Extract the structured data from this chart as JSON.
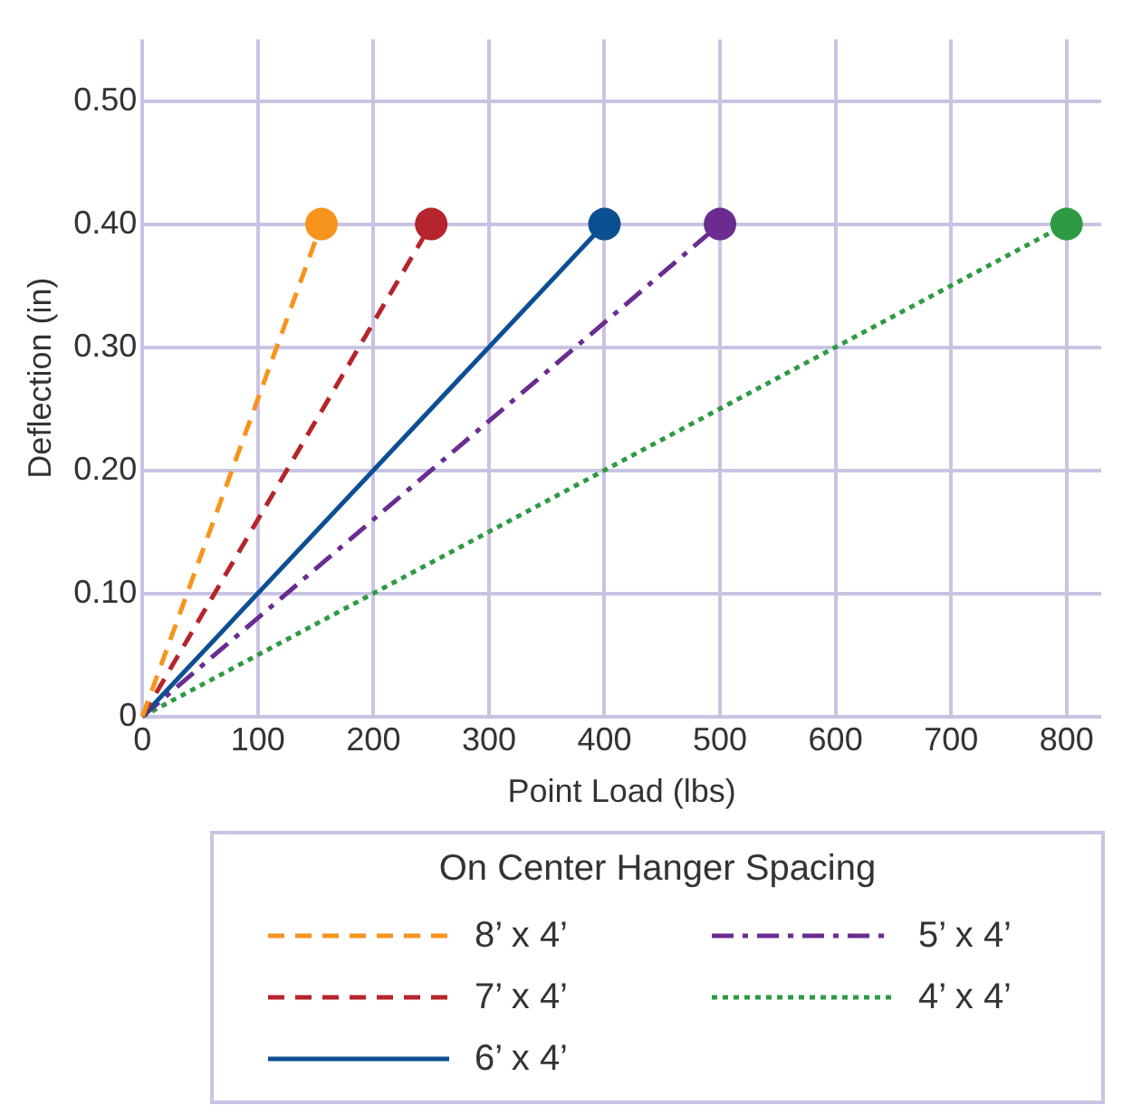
{
  "chart_data": {
    "type": "line",
    "xlabel": "Point Load (lbs)",
    "ylabel": "Deflection (in)",
    "legend_title": "On Center Hanger Spacing",
    "xlim": [
      0,
      830
    ],
    "xticks": [
      0,
      100,
      200,
      300,
      400,
      500,
      600,
      700,
      800
    ],
    "ylim": [
      0,
      0.55
    ],
    "yticks": [
      0,
      {
        "value": 0.1,
        "label": "0.10"
      },
      {
        "value": 0.2,
        "label": "0.20"
      },
      {
        "value": 0.3,
        "label": "0.30"
      },
      {
        "value": 0.4,
        "label": "0.40"
      },
      {
        "value": 0.5,
        "label": "0.50"
      }
    ],
    "grid": true,
    "legend": "bottom",
    "marker": "circle",
    "series": [
      {
        "name": "8’ x 4’",
        "color": "#f7941d",
        "line_style": "dashed",
        "x": [
          0,
          155
        ],
        "values": [
          0,
          0.4
        ]
      },
      {
        "name": "7’ x 4’",
        "color": "#b5252b",
        "line_style": "dashed",
        "x": [
          0,
          250
        ],
        "values": [
          0,
          0.4
        ]
      },
      {
        "name": "6’ x 4’",
        "color": "#0d4f93",
        "line_style": "solid",
        "x": [
          0,
          400
        ],
        "values": [
          0,
          0.4
        ]
      },
      {
        "name": "5’ x 4’",
        "color": "#6a2c91",
        "line_style": "dashdot",
        "x": [
          0,
          500
        ],
        "values": [
          0,
          0.4
        ]
      },
      {
        "name": "4’ x 4’",
        "color": "#2e9a44",
        "line_style": "dotted",
        "x": [
          0,
          800
        ],
        "values": [
          0,
          0.4
        ]
      }
    ]
  }
}
